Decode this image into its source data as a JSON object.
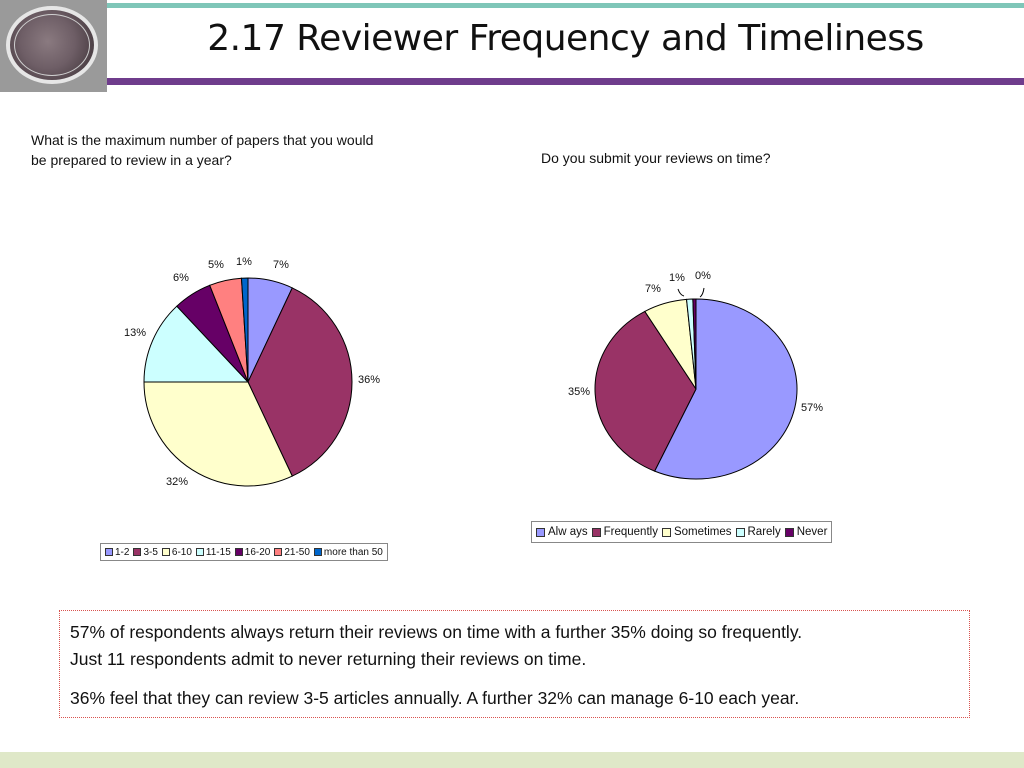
{
  "title": "2.17 Reviewer Frequency and Timeliness",
  "chart_data": [
    {
      "type": "pie",
      "title": "What is the maximum number of papers that you would be prepared to review in a year?",
      "categories": [
        "1-2",
        "3-5",
        "6-10",
        "11-15",
        "16-20",
        "21-50",
        "more than 50"
      ],
      "values": [
        7,
        36,
        32,
        13,
        6,
        5,
        1
      ],
      "labels": [
        "7%",
        "36%",
        "32%",
        "13%",
        "6%",
        "5%",
        "1%"
      ],
      "colors": [
        "#9999ff",
        "#993366",
        "#ffffcc",
        "#ccffff",
        "#660066",
        "#ff8080",
        "#0066cc"
      ],
      "legend_position": "bottom"
    },
    {
      "type": "pie",
      "title": "Do you submit your reviews on time?",
      "categories": [
        "Always",
        "Frequently",
        "Sometimes",
        "Rarely",
        "Never"
      ],
      "legend_labels": [
        "Alw ays",
        "Frequently",
        "Sometimes",
        "Rarely",
        "Never"
      ],
      "values": [
        57,
        35,
        7,
        1,
        0.5
      ],
      "labels": [
        "57%",
        "35%",
        "7%",
        "1%",
        "0%"
      ],
      "colors": [
        "#9999ff",
        "#993366",
        "#ffffcc",
        "#ccffff",
        "#660066"
      ],
      "legend_position": "bottom"
    }
  ],
  "text": {
    "p1_line1": "57% of respondents always return their reviews on time with a further 35% doing so frequently.",
    "p1_line2": "Just 11 respondents admit to never returning their reviews on time.",
    "p2": "36% feel that they can review 3-5 articles annually. A further 32% can manage 6-10 each year."
  }
}
